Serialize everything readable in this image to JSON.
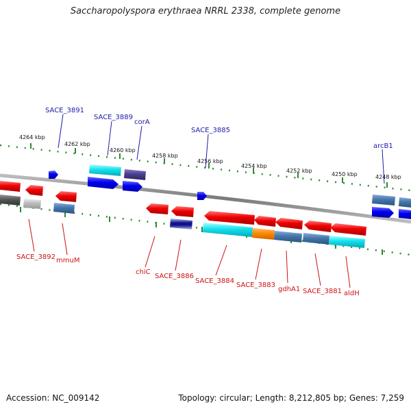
{
  "title": "Saccharopolyspora erythraea NRRL 2338, complete genome",
  "footer": {
    "accession": "Accession: NC_009142",
    "summary": "Topology: circular; Length: 8,212,805 bp; Genes: 7,259"
  },
  "ruler_ticks": [
    "4264 kbp",
    "4262 kbp",
    "4260 kbp",
    "4258 kbp",
    "4256 kbp",
    "4254 kbp",
    "4252 kbp",
    "4250 kbp",
    "4248 kbp"
  ],
  "gene_labels_forward": [
    "SACE_3891",
    "SACE_3889",
    "corA",
    "SACE_3885",
    "arcB1"
  ],
  "gene_labels_reverse": [
    "SACE_3892",
    "mmuM",
    "chiC",
    "SACE_3886",
    "SACE_3884",
    "SACE_3883",
    "gdhA1",
    "SACE_3881",
    "aldH"
  ],
  "colors": {
    "forward_label": "#1a1aa8",
    "reverse_label": "#cc1111",
    "forward_gene": "#1010e0",
    "reverse_gene": "#ee1111",
    "cyan_feature": "#11e0ee",
    "slate_feature": "#4477aa",
    "orange_feature": "#ff8800",
    "tick_green": "#2a8a2a",
    "backbone": "#888888"
  }
}
